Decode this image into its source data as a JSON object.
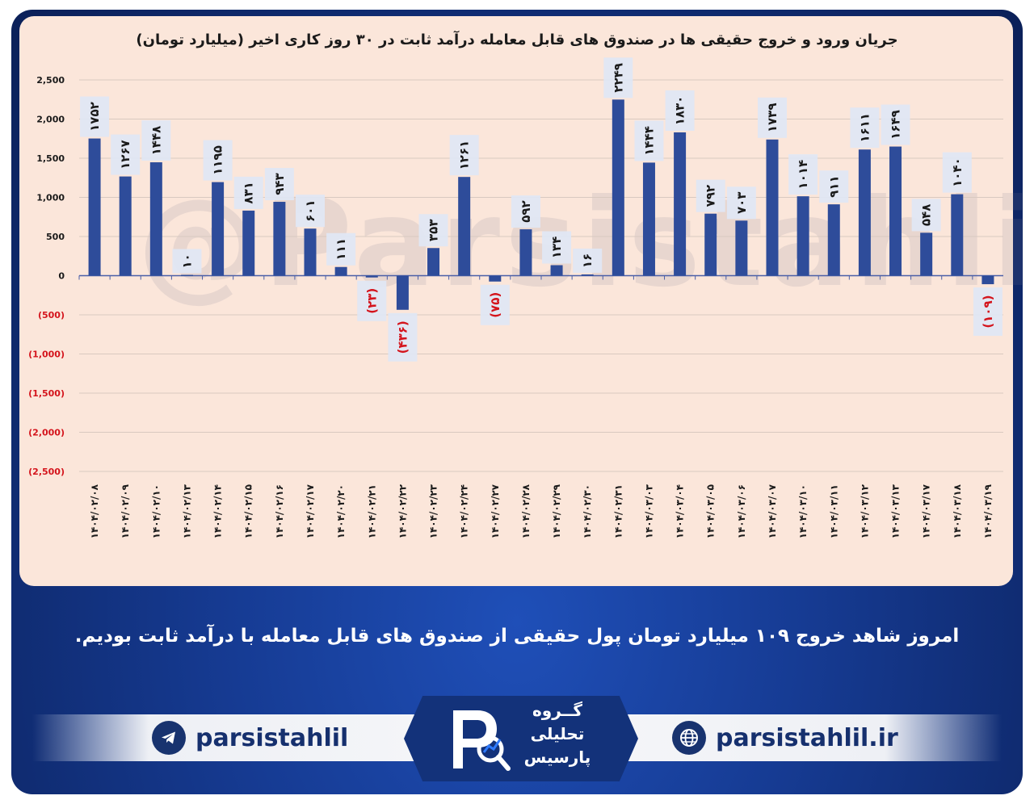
{
  "chart_data": {
    "type": "bar",
    "title": "جریان ورود و خروج حقیقی ها در صندوق های قابل معامله درآمد ثابت در ۳۰ روز کاری اخیر (میلیارد تومان)",
    "ylim": [
      -2500,
      2500
    ],
    "yticks": [
      2500,
      2000,
      1500,
      1000,
      500,
      0,
      -500,
      -1000,
      -1500,
      -2000,
      -2500
    ],
    "ytick_labels": [
      "2,500",
      "2,000",
      "1,500",
      "1,000",
      "500",
      "0",
      "(500)",
      "(1,000)",
      "(1,500)",
      "(2,000)",
      "(2,500)"
    ],
    "categories": [
      "۱۴۰۴/۰۲/۰۸",
      "۱۴۰۴/۰۲/۰۹",
      "۱۴۰۴/۰۲/۱۰",
      "۱۴۰۴/۰۲/۱۳",
      "۱۴۰۴/۰۲/۱۴",
      "۱۴۰۴/۰۲/۱۵",
      "۱۴۰۴/۰۲/۱۶",
      "۱۴۰۴/۰۲/۱۷",
      "۱۴۰۴/۰۲/۲۰",
      "۱۴۰۴/۰۲/۲۱",
      "۱۴۰۴/۰۲/۲۲",
      "۱۴۰۴/۰۲/۲۳",
      "۱۴۰۴/۰۲/۲۴",
      "۱۴۰۴/۰۲/۲۷",
      "۱۴۰۴/۰۲/۲۸",
      "۱۴۰۴/۰۲/۲۹",
      "۱۴۰۴/۰۲/۳۰",
      "۱۴۰۴/۰۲/۳۱",
      "۱۴۰۴/۰۳/۰۳",
      "۱۴۰۴/۰۳/۰۴",
      "۱۴۰۴/۰۳/۰۵",
      "۱۴۰۴/۰۳/۰۶",
      "۱۴۰۴/۰۳/۰۷",
      "۱۴۰۴/۰۳/۱۰",
      "۱۴۰۴/۰۳/۱۱",
      "۱۴۰۴/۰۳/۱۲",
      "۱۴۰۴/۰۳/۱۳",
      "۱۴۰۴/۰۳/۱۷",
      "۱۴۰۴/۰۳/۱۸",
      "۱۴۰۴/۰۳/۱۹"
    ],
    "values": [
      1752,
      1267,
      1448,
      10,
      1195,
      831,
      943,
      601,
      111,
      -23,
      -436,
      353,
      1261,
      -75,
      592,
      134,
      16,
      2249,
      1444,
      1830,
      792,
      703,
      1739,
      1014,
      911,
      1611,
      1649,
      548,
      1040,
      -109
    ],
    "data_labels": [
      "۱۷۵۲",
      "۱۲۶۷",
      "۱۴۴۸",
      "۱۰",
      "۱۱۹۵",
      "۸۳۱",
      "۹۴۳",
      "۶۰۱",
      "۱۱۱",
      "(۲۳)",
      "(۴۳۶)",
      "۳۵۳",
      "۱۲۶۱",
      "(۷۵)",
      "۵۹۲",
      "۱۳۴",
      "۱۶",
      "۲۲۴۹",
      "۱۴۴۴",
      "۱۸۳۰",
      "۷۹۲",
      "۷۰۳",
      "۱۷۳۹",
      "۱۰۱۴",
      "۹۱۱",
      "۱۶۱۱",
      "۱۶۴۹",
      "۵۴۸",
      "۱۰۴۰",
      "(۱۰۹)"
    ],
    "bar_color": "#2e4c9a",
    "positive_label_color": "#1a1a1a",
    "negative_label_color": "#d4141c",
    "grid": true
  },
  "watermark": "@Parsistahlil",
  "caption": "امروز شاهد خروج ۱۰۹ میلیارد تومان پول حقیقی از صندوق های قابل معامله با درآمد ثابت بودیم.",
  "footer": {
    "telegram_handle": "parsistahlil",
    "website": "parsistahlil.ir",
    "logo_lines": [
      "گــروه",
      "تحلیلی",
      "پارسیس"
    ]
  }
}
